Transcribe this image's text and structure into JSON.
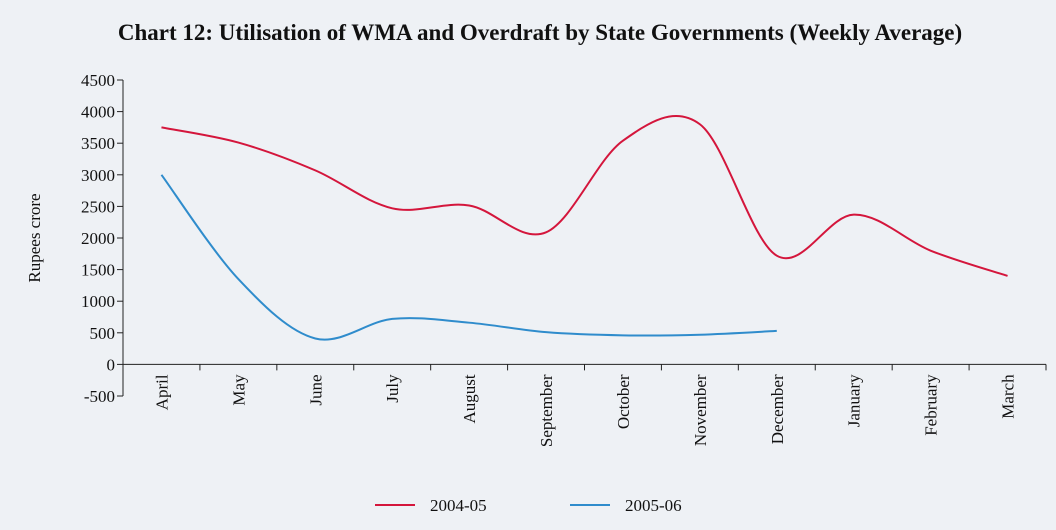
{
  "chart_data": {
    "type": "line",
    "title": "Chart 12: Utilisation of WMA and Overdraft by State Governments (Weekly Average)",
    "ylabel": "Rupees crore",
    "categories": [
      "April",
      "May",
      "June",
      "July",
      "August",
      "September",
      "October",
      "November",
      "December",
      "January",
      "February",
      "March"
    ],
    "series": [
      {
        "name": "2004-05",
        "color": "#d4163c",
        "values": [
          3750,
          3510,
          3070,
          2470,
          2515,
          2090,
          3540,
          3800,
          1720,
          2370,
          1800,
          1400
        ]
      },
      {
        "name": "2005-06",
        "color": "#2f8ccc",
        "values": [
          3000,
          1350,
          410,
          720,
          660,
          510,
          460,
          470,
          530,
          null,
          null,
          null
        ]
      }
    ],
    "ylim": [
      -500,
      4500
    ],
    "yticks": [
      -500,
      0,
      500,
      1000,
      1500,
      2000,
      2500,
      3000,
      3500,
      4000,
      4500
    ],
    "legend": "bottom"
  }
}
